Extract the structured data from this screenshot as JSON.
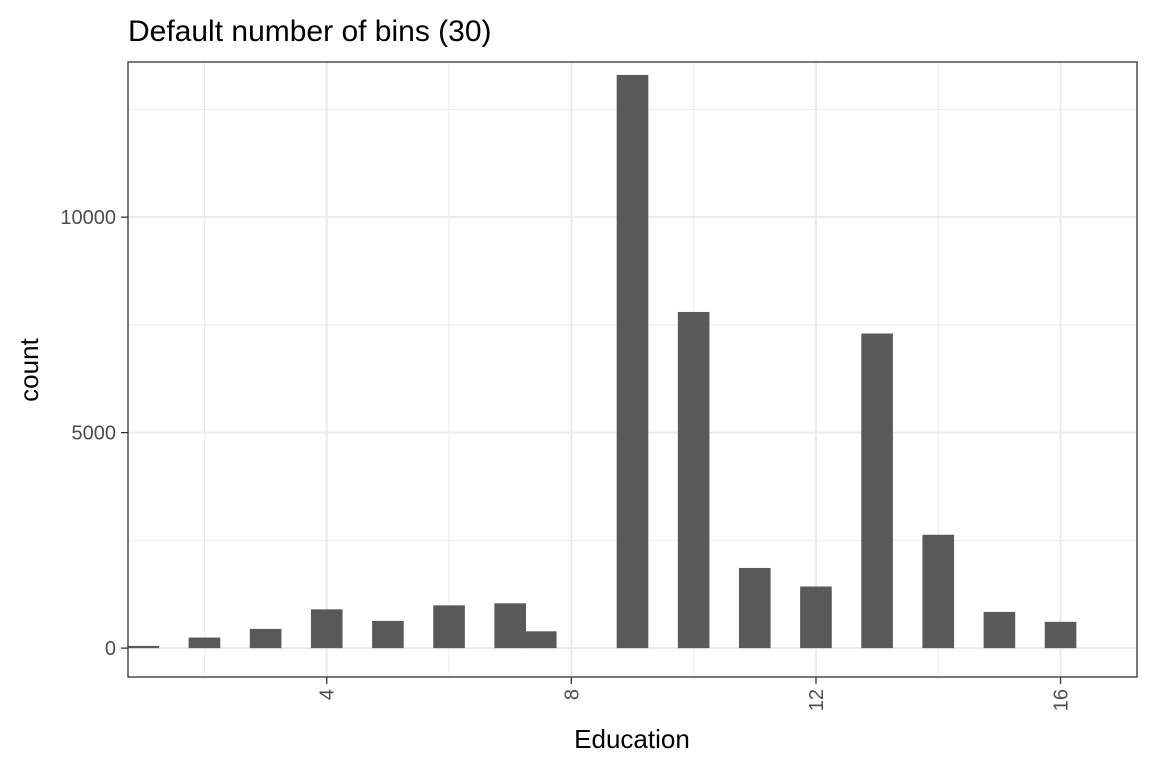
{
  "chart_data": {
    "type": "bar",
    "title": "Default number of bins (30)",
    "xlabel": "Education",
    "ylabel": "count",
    "xlim": [
      0.75,
      17.25
    ],
    "ylim": [
      -670,
      13600
    ],
    "x_major_ticks": [
      4,
      8,
      12,
      16
    ],
    "x_minor_ticks": [
      2,
      6,
      10,
      14
    ],
    "y_major_ticks": [
      0,
      5000,
      10000
    ],
    "y_minor_ticks": [
      2500,
      7500,
      12500
    ],
    "x_tick_labels": [
      "4",
      "8",
      "12",
      "16"
    ],
    "y_tick_labels": [
      "0",
      "5000",
      "10000"
    ],
    "bin_width": 0.517,
    "grid": true,
    "legend": "none",
    "bar_color": "#595959",
    "bars": [
      {
        "x": 1.0,
        "count": 51
      },
      {
        "x": 2.0,
        "count": 245
      },
      {
        "x": 3.0,
        "count": 446
      },
      {
        "x": 4.0,
        "count": 900
      },
      {
        "x": 5.0,
        "count": 632
      },
      {
        "x": 6.0,
        "count": 992
      },
      {
        "x": 7.0,
        "count": 1040
      },
      {
        "x": 7.5,
        "count": 390
      },
      {
        "x": 9.0,
        "count": 13300
      },
      {
        "x": 10.0,
        "count": 7800
      },
      {
        "x": 11.0,
        "count": 1860
      },
      {
        "x": 12.0,
        "count": 1430
      },
      {
        "x": 13.0,
        "count": 7300
      },
      {
        "x": 14.0,
        "count": 2630
      },
      {
        "x": 15.0,
        "count": 840
      },
      {
        "x": 16.0,
        "count": 610
      }
    ]
  }
}
